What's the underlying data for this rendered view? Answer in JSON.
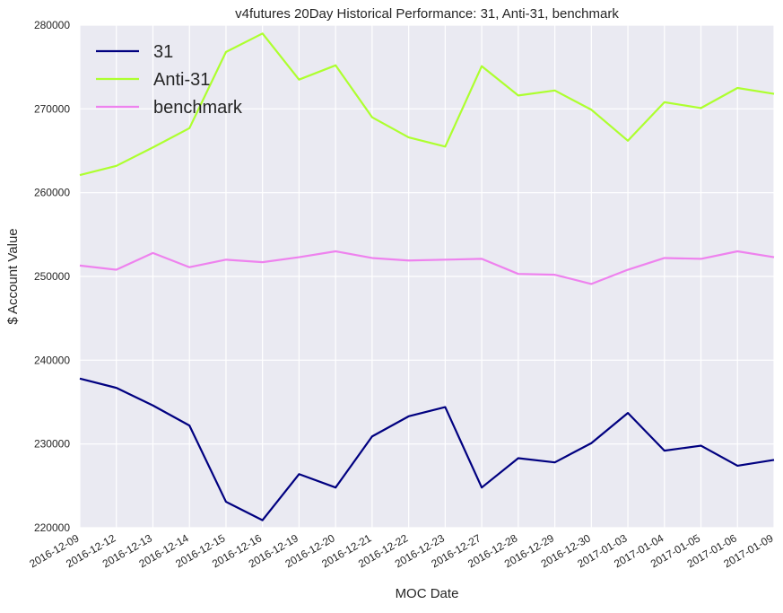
{
  "chart_data": {
    "type": "line",
    "title": "v4futures 20Day Historical Performance: 31, Anti-31, benchmark",
    "xlabel": "MOC Date",
    "ylabel": "$ Account Value",
    "ylim": [
      220000,
      280000
    ],
    "yticks": [
      220000,
      230000,
      240000,
      250000,
      260000,
      270000,
      280000
    ],
    "categories": [
      "2016-12-09",
      "2016-12-12",
      "2016-12-13",
      "2016-12-14",
      "2016-12-15",
      "2016-12-16",
      "2016-12-19",
      "2016-12-20",
      "2016-12-21",
      "2016-12-22",
      "2016-12-23",
      "2016-12-27",
      "2016-12-28",
      "2016-12-29",
      "2016-12-30",
      "2017-01-03",
      "2017-01-04",
      "2017-01-05",
      "2017-01-06",
      "2017-01-09"
    ],
    "grid": true,
    "legend_position": "top-left",
    "background": "#EAEAF2",
    "series": [
      {
        "name": "31",
        "color": "#000080",
        "values": [
          237800,
          236700,
          234600,
          232200,
          223100,
          220900,
          226400,
          224800,
          230900,
          233300,
          234400,
          224800,
          228300,
          227800,
          230100,
          233700,
          229200,
          229800,
          227400,
          228100
        ]
      },
      {
        "name": "Anti-31",
        "color": "#ADFF2F",
        "values": [
          262100,
          263200,
          265400,
          267700,
          276800,
          279000,
          273500,
          275200,
          269000,
          266600,
          265500,
          275100,
          271600,
          272200,
          269900,
          266200,
          270800,
          270100,
          272500,
          271800
        ]
      },
      {
        "name": "benchmark",
        "color": "#EE82EE",
        "values": [
          251300,
          250800,
          252800,
          251100,
          252000,
          251700,
          252300,
          253000,
          252200,
          251900,
          252000,
          252100,
          250300,
          250200,
          249100,
          250800,
          252200,
          252100,
          253000,
          252300
        ]
      }
    ]
  }
}
